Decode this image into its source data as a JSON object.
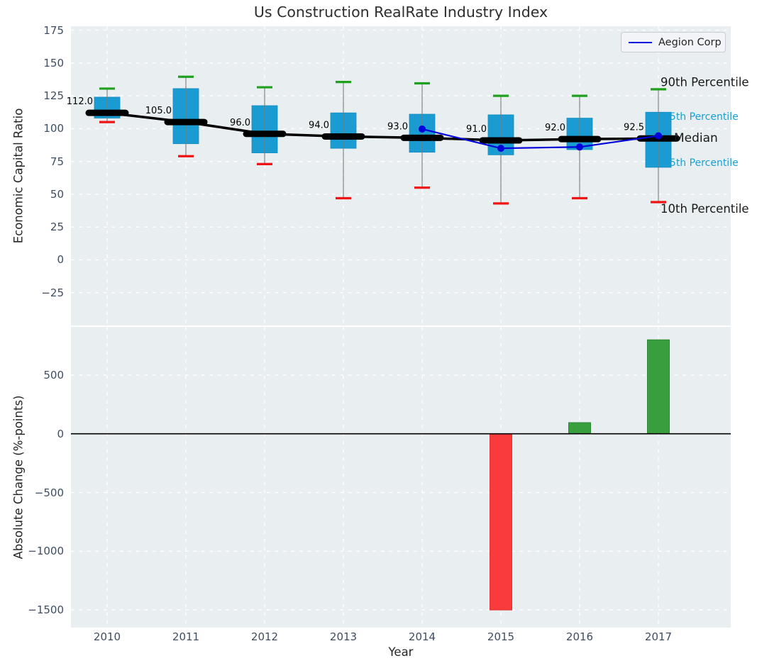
{
  "style": {
    "axes_bg": "#e9eef0",
    "grid_color": "#ffffff",
    "tick_color": "#3f4d61",
    "box_fill": "#1a9cd2",
    "box_edge": "#158cbf",
    "whisker_color": "#7a7a7a",
    "cap_top_color": "#1fa01f",
    "cap_bottom_color": "#f01414",
    "median_color": "#000000",
    "annotation_cyan": "#17a0d4",
    "annotation_black": "#1a1a1a"
  },
  "chart_data": [
    {
      "type": "boxplot",
      "panel": "top",
      "title": "Us Construction RealRate Industry Index",
      "ylabel": "Economic Capital Ratio",
      "ylim": [
        -50,
        178
      ],
      "yticks": [
        175,
        150,
        125,
        100,
        75,
        50,
        25,
        0,
        -25
      ],
      "grid": true,
      "legend_position": "upper right",
      "categories": [
        "2010",
        "2011",
        "2012",
        "2013",
        "2014",
        "2015",
        "2016",
        "2017"
      ],
      "boxes": [
        {
          "year": "2010",
          "p10": 105,
          "p25": 108,
          "median": 112.0,
          "p75": 124,
          "p90": 130.5,
          "label": "112.0"
        },
        {
          "year": "2011",
          "p10": 79,
          "p25": 88.5,
          "median": 105.0,
          "p75": 130.5,
          "p90": 139.5,
          "label": "105.0"
        },
        {
          "year": "2012",
          "p10": 73,
          "p25": 81.5,
          "median": 96.0,
          "p75": 117.5,
          "p90": 131.5,
          "label": "96.0"
        },
        {
          "year": "2013",
          "p10": 47,
          "p25": 85,
          "median": 94.0,
          "p75": 112,
          "p90": 135.5,
          "label": "94.0"
        },
        {
          "year": "2014",
          "p10": 55,
          "p25": 82,
          "median": 93.0,
          "p75": 111,
          "p90": 134.5,
          "label": "93.0"
        },
        {
          "year": "2015",
          "p10": 43,
          "p25": 80,
          "median": 91.0,
          "p75": 110.5,
          "p90": 125,
          "label": "91.0"
        },
        {
          "year": "2016",
          "p10": 47,
          "p25": 84,
          "median": 92.0,
          "p75": 108,
          "p90": 125,
          "label": "92.0"
        },
        {
          "year": "2017",
          "p10": 44,
          "p25": 70.5,
          "median": 92.5,
          "p75": 112.5,
          "p90": 130,
          "label": "92.5"
        }
      ],
      "series": [
        {
          "name": "Aegion Corp",
          "color": "#0000dd",
          "points": [
            {
              "x": "2014",
              "y": 99.7
            },
            {
              "x": "2015",
              "y": 85
            },
            {
              "x": "2016",
              "y": 86
            },
            {
              "x": "2017",
              "y": 94.5
            }
          ]
        }
      ],
      "annotations": [
        {
          "label": "90th Percentile",
          "stat": "p90",
          "color": "#1a1a1a",
          "size": 16.5
        },
        {
          "label": "75th Percentile",
          "stat": "p75",
          "color": "#17a0d4",
          "size": 14
        },
        {
          "label": "Median",
          "stat": "median",
          "color": "#1a1a1a",
          "size": 17
        },
        {
          "label": "25th Percentile",
          "stat": "p25",
          "color": "#17a0d4",
          "size": 14
        },
        {
          "label": "10th Percentile",
          "stat": "p10",
          "color": "#1a1a1a",
          "size": 16.5
        }
      ]
    },
    {
      "type": "bar",
      "panel": "bottom",
      "ylabel": "Absolute Change (%-points)",
      "xlabel": "Year",
      "ylim": [
        -1650,
        910
      ],
      "yticks": [
        500,
        0,
        -500,
        -1000,
        -1500
      ],
      "grid": true,
      "zero_line": true,
      "categories": [
        "2010",
        "2011",
        "2012",
        "2013",
        "2014",
        "2015",
        "2016",
        "2017"
      ],
      "values": [
        null,
        null,
        null,
        null,
        null,
        -1500,
        95,
        800
      ],
      "positive_color": "#389e3e",
      "negative_color": "#f93b3b"
    }
  ]
}
